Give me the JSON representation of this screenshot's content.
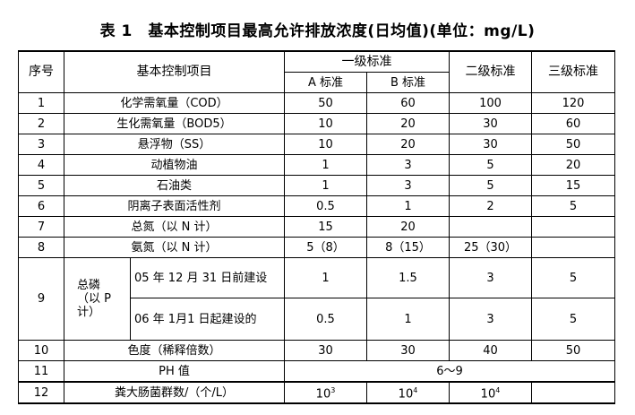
{
  "title": "表 1　基本控制项目最高允许排放浓度(日均值)(单位：mg/L)",
  "headers": {
    "no": "序号",
    "item": "基本控制项目",
    "grade1": "一级标准",
    "a": "A 标准",
    "b": "B 标准",
    "grade2": "二级标准",
    "grade3": "三级标准"
  },
  "rows": [
    {
      "no": "1",
      "item": "化学需氧量（COD）",
      "a": "50",
      "b": "60",
      "g2": "100",
      "g3": "120"
    },
    {
      "no": "2",
      "item": "生化需氧量（BOD5）",
      "a": "10",
      "b": "20",
      "g2": "30",
      "g3": "60"
    },
    {
      "no": "3",
      "item": "悬浮物（SS）",
      "a": "10",
      "b": "20",
      "g2": "30",
      "g3": "50"
    },
    {
      "no": "4",
      "item": "动植物油",
      "a": "1",
      "b": "3",
      "g2": "5",
      "g3": "20"
    },
    {
      "no": "5",
      "item": "石油类",
      "a": "1",
      "b": "3",
      "g2": "5",
      "g3": "15"
    },
    {
      "no": "6",
      "item": "阴离子表面活性剂",
      "a": "0.5",
      "b": "1",
      "g2": "2",
      "g3": "5"
    },
    {
      "no": "7",
      "item": "总氮（以 N 计）",
      "a": "15",
      "b": "20",
      "g2": "",
      "g3": ""
    },
    {
      "no": "8",
      "item": "氨氮（以 N 计）",
      "a": "5（8）",
      "b": "8（15）",
      "g2": "25（30）",
      "g3": ""
    }
  ],
  "row9": {
    "no": "9",
    "item": "总磷（以 P 计）",
    "sub": [
      {
        "label": "05 年 12 月 31 日前建设",
        "a": "1",
        "b": "1.5",
        "g2": "3",
        "g3": "5"
      },
      {
        "label": "06 年 1月1 日起建设的",
        "a": "0.5",
        "b": "1",
        "g2": "3",
        "g3": "5"
      }
    ]
  },
  "row10": {
    "no": "10",
    "item": "色度（稀释倍数）",
    "a": "30",
    "b": "30",
    "g2": "40",
    "g3": "50"
  },
  "row11": {
    "no": "11",
    "item": "PH 值",
    "value": "6～9"
  },
  "row12": {
    "no": "12",
    "item": "粪大肠菌群数/（个/L）",
    "a_base": "10",
    "a_exp": "3",
    "b_base": "10",
    "b_exp": "4",
    "g2_base": "10",
    "g2_exp": "4",
    "g3": ""
  }
}
